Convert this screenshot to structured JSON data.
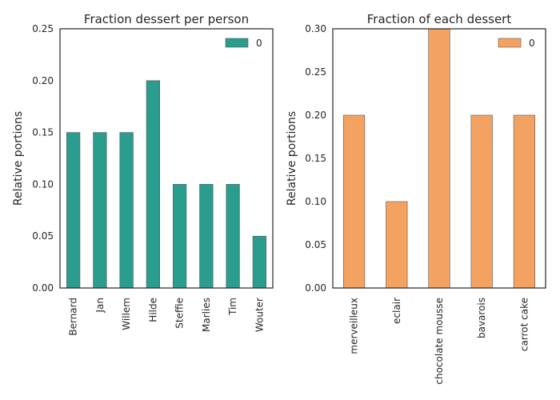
{
  "chart_data": [
    {
      "type": "bar",
      "title": "Fraction dessert per person",
      "xlabel": "",
      "ylabel": "Relative portions",
      "categories": [
        "Bernard",
        "Jan",
        "Willem",
        "Hilde",
        "Steffie",
        "Marlies",
        "Tim",
        "Wouter"
      ],
      "series": [
        {
          "name": "0",
          "values": [
            0.15,
            0.15,
            0.15,
            0.2,
            0.1,
            0.1,
            0.1,
            0.05
          ],
          "color": "#2a9d8f"
        }
      ],
      "ylim": [
        0,
        0.25
      ],
      "yticks": [
        "0.00",
        "0.05",
        "0.10",
        "0.15",
        "0.20",
        "0.25"
      ],
      "legend": "top-right",
      "grid": false
    },
    {
      "type": "bar",
      "title": "Fraction of each dessert",
      "xlabel": "",
      "ylabel": "Relative portions",
      "categories": [
        "merveilleux",
        "eclair",
        "chocolate mousse",
        "bavarois",
        "carrot cake"
      ],
      "series": [
        {
          "name": "0",
          "values": [
            0.2,
            0.1,
            0.3,
            0.2,
            0.2
          ],
          "color": "#f4a261"
        }
      ],
      "ylim": [
        0,
        0.3
      ],
      "yticks": [
        "0.00",
        "0.05",
        "0.10",
        "0.15",
        "0.20",
        "0.25",
        "0.30"
      ],
      "legend": "top-right",
      "grid": false
    }
  ]
}
